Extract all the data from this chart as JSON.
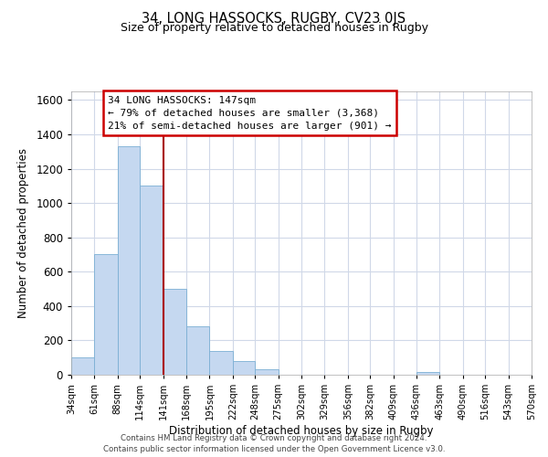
{
  "title": "34, LONG HASSOCKS, RUGBY, CV23 0JS",
  "subtitle": "Size of property relative to detached houses in Rugby",
  "xlabel": "Distribution of detached houses by size in Rugby",
  "ylabel": "Number of detached properties",
  "bar_color": "#c5d8f0",
  "bar_edge_color": "#7bafd4",
  "annotation_box_color": "#ffffff",
  "annotation_box_edge": "#cc0000",
  "vline_color": "#aa0000",
  "vline_x": 141,
  "bin_edges": [
    34,
    61,
    88,
    114,
    141,
    168,
    195,
    222,
    248,
    275,
    302,
    329,
    356,
    382,
    409,
    436,
    463,
    490,
    516,
    543,
    570
  ],
  "bar_heights": [
    100,
    700,
    1330,
    1100,
    500,
    280,
    140,
    80,
    30,
    0,
    0,
    0,
    0,
    0,
    0,
    15,
    0,
    0,
    0,
    0
  ],
  "tick_labels": [
    "34sqm",
    "61sqm",
    "88sqm",
    "114sqm",
    "141sqm",
    "168sqm",
    "195sqm",
    "222sqm",
    "248sqm",
    "275sqm",
    "302sqm",
    "329sqm",
    "356sqm",
    "382sqm",
    "409sqm",
    "436sqm",
    "463sqm",
    "490sqm",
    "516sqm",
    "543sqm",
    "570sqm"
  ],
  "ylim": [
    0,
    1650
  ],
  "yticks": [
    0,
    200,
    400,
    600,
    800,
    1000,
    1200,
    1400,
    1600
  ],
  "annotation_line1": "34 LONG HASSOCKS: 147sqm",
  "annotation_line2": "← 79% of detached houses are smaller (3,368)",
  "annotation_line3": "21% of semi-detached houses are larger (901) →",
  "footer_line1": "Contains HM Land Registry data © Crown copyright and database right 2024.",
  "footer_line2": "Contains public sector information licensed under the Open Government Licence v3.0.",
  "background_color": "#ffffff",
  "grid_color": "#d0d8e8"
}
